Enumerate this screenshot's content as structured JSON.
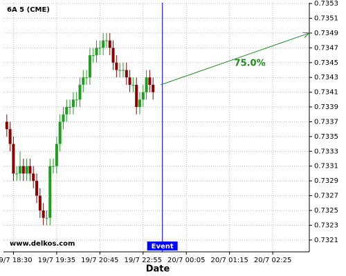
{
  "chart_data": {
    "type": "candlestick",
    "title": "6A 5 (CME)",
    "watermark": "www.delkos.com",
    "x_label": "Date",
    "up_color": "#1e9e1e",
    "down_color": "#8b0000",
    "open": [
      0.7337,
      0.7336,
      0.7334,
      0.733,
      0.733,
      0.7331,
      0.733,
      0.7331,
      0.733,
      0.7329,
      0.7327,
      0.7325,
      0.7324,
      0.7324,
      0.7331,
      0.7331,
      0.7334,
      0.7337,
      0.7338,
      0.7339,
      0.7339,
      0.734,
      0.734,
      0.7342,
      0.7343,
      0.7343,
      0.7346,
      0.7346,
      0.7347,
      0.7347,
      0.7348,
      0.7348,
      0.7347,
      0.7345,
      0.7344,
      0.7344,
      0.7344,
      0.7343,
      0.7342,
      0.7342,
      0.7339,
      0.734,
      0.7341,
      0.7343,
      0.7342
    ],
    "high": [
      0.7338,
      0.7337,
      0.7335,
      0.7331,
      0.7333,
      0.7332,
      0.7332,
      0.7332,
      0.7331,
      0.733,
      0.7328,
      0.7326,
      0.7325,
      0.7332,
      0.7332,
      0.7335,
      0.7338,
      0.7339,
      0.734,
      0.734,
      0.7341,
      0.7341,
      0.7343,
      0.7344,
      0.7344,
      0.7347,
      0.7347,
      0.7348,
      0.7348,
      0.7349,
      0.7349,
      0.7349,
      0.7348,
      0.7346,
      0.7345,
      0.7345,
      0.7345,
      0.7344,
      0.7343,
      0.7343,
      0.7341,
      0.7342,
      0.7344,
      0.7344,
      0.7343
    ],
    "low": [
      0.7335,
      0.7333,
      0.7329,
      0.7329,
      0.7329,
      0.7329,
      0.7329,
      0.7329,
      0.7328,
      0.7326,
      0.7324,
      0.7323,
      0.7323,
      0.7323,
      0.733,
      0.733,
      0.7333,
      0.7336,
      0.7337,
      0.7338,
      0.7338,
      0.7339,
      0.7339,
      0.7341,
      0.7342,
      0.7342,
      0.7345,
      0.7345,
      0.7346,
      0.7346,
      0.7347,
      0.7346,
      0.7344,
      0.7343,
      0.7343,
      0.7343,
      0.7342,
      0.7341,
      0.7341,
      0.7338,
      0.7338,
      0.7339,
      0.734,
      0.7341,
      0.734
    ],
    "close": [
      0.7336,
      0.7334,
      0.733,
      0.733,
      0.7331,
      0.733,
      0.7331,
      0.733,
      0.7329,
      0.7327,
      0.7325,
      0.7324,
      0.7324,
      0.7331,
      0.7331,
      0.7334,
      0.7337,
      0.7338,
      0.7339,
      0.7339,
      0.734,
      0.734,
      0.7342,
      0.7343,
      0.7343,
      0.7346,
      0.7346,
      0.7347,
      0.7347,
      0.7348,
      0.7348,
      0.7347,
      0.7345,
      0.7344,
      0.7344,
      0.7344,
      0.7343,
      0.7342,
      0.7342,
      0.7339,
      0.734,
      0.7341,
      0.7343,
      0.7342,
      0.7341
    ],
    "xlim": [
      -1,
      91
    ],
    "xticks": [
      {
        "value": 2,
        "label": "19/7 18:30"
      },
      {
        "value": 15,
        "label": "19/7 19:35"
      },
      {
        "value": 28,
        "label": "19/7 20:45"
      },
      {
        "value": 41,
        "label": "19/7 22:55"
      },
      {
        "value": 54,
        "label": "20/7 00:05"
      },
      {
        "value": 67,
        "label": "20/7 01:15"
      },
      {
        "value": 80,
        "label": "20/7 02:25"
      }
    ],
    "ylim": [
      0.73194,
      0.73531
    ],
    "yticks": [
      0.7321,
      0.7323,
      0.7325,
      0.7327,
      0.7329,
      0.7331,
      0.7333,
      0.7335,
      0.7337,
      0.7339,
      0.7341,
      0.7343,
      0.7345,
      0.7347,
      0.7349,
      0.7351,
      0.7353
    ],
    "grid": true,
    "event": {
      "label": "Event",
      "x": 46.8,
      "color": "#0000ff"
    },
    "projection": {
      "label": "75.0%",
      "x": [
        46.3,
        91
      ],
      "y": [
        0.7342,
        0.7349
      ],
      "color": "#1e8c1e"
    }
  }
}
